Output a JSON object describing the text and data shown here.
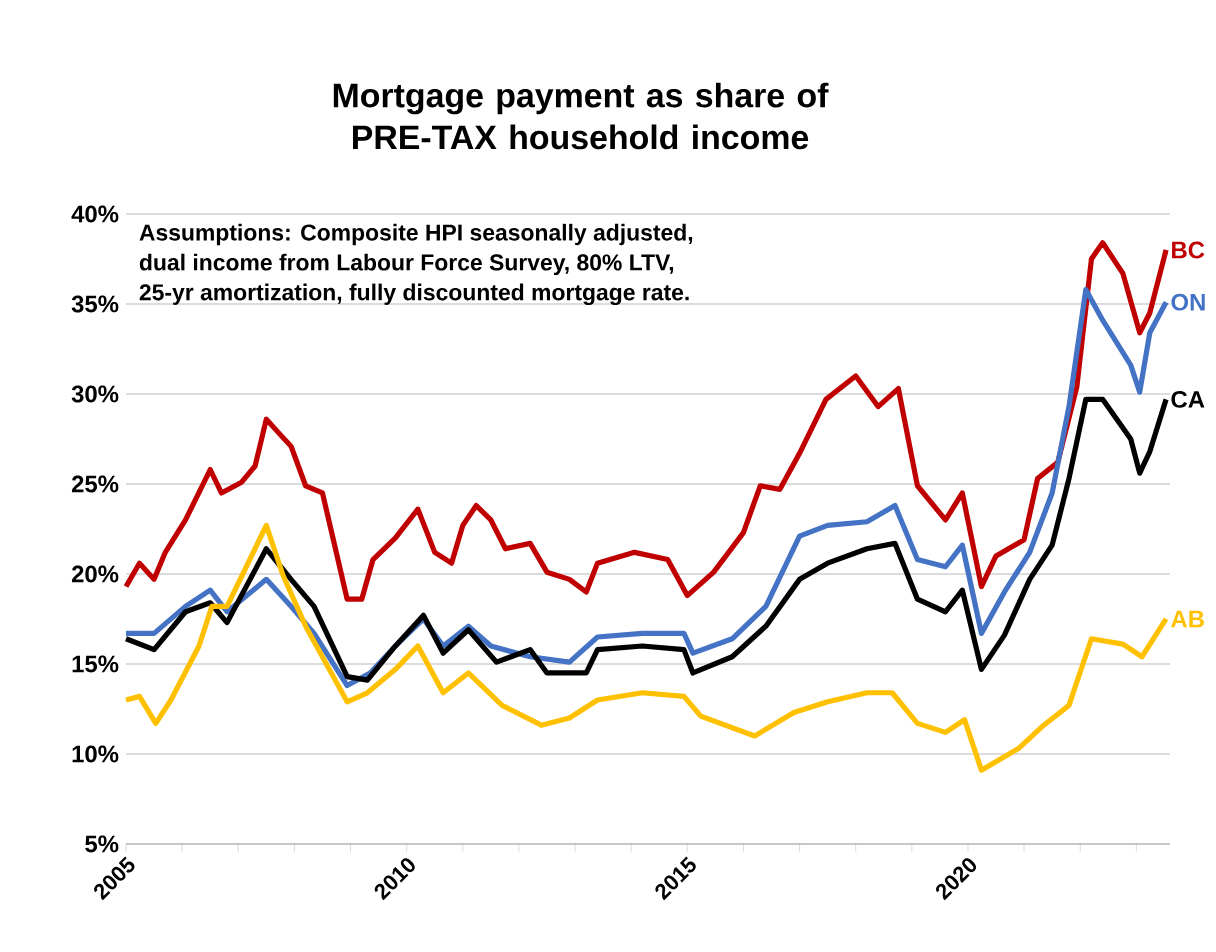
{
  "chart_data": {
    "type": "line",
    "title": "Mortgage payment as share of PRE-TAX household income",
    "annotations": [
      "Assumptions:  Composite HPI seasonally adjusted,",
      "dual income from Labour Force Survey, 80% LTV,",
      "25-yr amortization, fully discounted mortgage rate."
    ],
    "xlim": [
      2005,
      2023.6
    ],
    "xticks": [
      2005,
      {
        "value": 2006,
        "label": null
      },
      {
        "value": 2007,
        "label": null
      },
      {
        "value": 2008,
        "label": null
      },
      {
        "value": 2009,
        "label": null
      },
      2010,
      {
        "value": 2011,
        "label": null
      },
      {
        "value": 2012,
        "label": null
      },
      {
        "value": 2013,
        "label": null
      },
      {
        "value": 2014,
        "label": null
      },
      2015,
      {
        "value": 2016,
        "label": null
      },
      {
        "value": 2017,
        "label": null
      },
      {
        "value": 2018,
        "label": null
      },
      {
        "value": 2019,
        "label": null
      },
      2020,
      {
        "value": 2021,
        "label": null
      },
      {
        "value": 2022,
        "label": null
      },
      {
        "value": 2023,
        "label": null
      }
    ],
    "ylim": [
      5,
      40
    ],
    "yticks": [
      {
        "value": 5,
        "label": "5%"
      },
      {
        "value": 10,
        "label": "10%"
      },
      {
        "value": 15,
        "label": "15%"
      },
      {
        "value": 20,
        "label": "20%"
      },
      {
        "value": 25,
        "label": "25%"
      },
      {
        "value": 30,
        "label": "30%"
      },
      {
        "value": 35,
        "label": "35%"
      },
      {
        "value": 40,
        "label": "40%"
      }
    ],
    "grid": "y",
    "marker": "none",
    "line_style": "solid",
    "series": [
      {
        "name": "BC",
        "color": "#c00000",
        "x": [
          2005,
          2005.24,
          2005.5,
          2005.7,
          2006.06,
          2006.5,
          2006.7,
          2007.06,
          2007.3,
          2007.5,
          2007.76,
          2007.94,
          2008.2,
          2008.5,
          2008.94,
          2009.2,
          2009.4,
          2009.8,
          2010.2,
          2010.5,
          2010.8,
          2011.0,
          2011.24,
          2011.5,
          2011.76,
          2012.2,
          2012.5,
          2012.9,
          2013.2,
          2013.4,
          2014.06,
          2014.65,
          2015.0,
          2015.47,
          2016.0,
          2016.3,
          2016.65,
          2017.0,
          2017.47,
          2018.0,
          2018.4,
          2018.76,
          2019.1,
          2019.6,
          2019.9,
          2020.24,
          2020.5,
          2021.0,
          2021.24,
          2021.6,
          2021.94,
          2022.2,
          2022.4,
          2022.76,
          2023.06,
          2023.24,
          2023.53
        ],
        "values": [
          19.3,
          20.6,
          19.7,
          21.2,
          23.0,
          25.8,
          24.5,
          25.1,
          26.0,
          28.6,
          27.7,
          27.1,
          24.9,
          24.5,
          18.6,
          18.6,
          20.8,
          22.0,
          23.6,
          21.2,
          20.6,
          22.7,
          23.8,
          23.0,
          21.4,
          21.7,
          20.1,
          19.7,
          19.0,
          20.6,
          21.2,
          20.8,
          18.8,
          20.1,
          22.3,
          24.9,
          24.7,
          26.7,
          29.7,
          31.0,
          29.3,
          30.3,
          24.9,
          23.0,
          24.5,
          19.3,
          21.0,
          21.9,
          25.3,
          26.2,
          30.4,
          37.5,
          38.4,
          36.7,
          33.4,
          34.5,
          38.0
        ]
      },
      {
        "name": "ON",
        "color": "#4472c4",
        "x": [
          2005,
          2005.5,
          2006.06,
          2006.5,
          2006.8,
          2007.5,
          2007.94,
          2008.35,
          2008.94,
          2009.35,
          2009.8,
          2010.3,
          2010.65,
          2011.1,
          2011.5,
          2012.2,
          2012.9,
          2013.4,
          2014.2,
          2014.94,
          2015.1,
          2015.8,
          2016.4,
          2017.0,
          2017.5,
          2018.2,
          2018.7,
          2019.1,
          2019.6,
          2019.9,
          2020.24,
          2020.65,
          2021.1,
          2021.5,
          2021.8,
          2022.1,
          2022.4,
          2022.9,
          2023.06,
          2023.24,
          2023.53
        ],
        "values": [
          16.7,
          16.7,
          18.2,
          19.1,
          17.9,
          19.7,
          18.2,
          16.7,
          13.8,
          14.5,
          16.0,
          17.5,
          16.0,
          17.1,
          16.0,
          15.4,
          15.1,
          16.5,
          16.7,
          16.7,
          15.6,
          16.4,
          18.2,
          22.1,
          22.7,
          22.9,
          23.8,
          20.8,
          20.4,
          21.6,
          16.7,
          19.0,
          21.2,
          24.5,
          29.3,
          35.8,
          34.1,
          31.6,
          30.1,
          33.4,
          35.1
        ]
      },
      {
        "name": "CA",
        "color": "#000000",
        "x": [
          2005,
          2005.5,
          2006.06,
          2006.5,
          2006.8,
          2007.5,
          2007.94,
          2008.35,
          2008.94,
          2009.3,
          2009.8,
          2010.3,
          2010.65,
          2011.1,
          2011.6,
          2012.2,
          2012.5,
          2013.2,
          2013.4,
          2014.2,
          2014.94,
          2015.1,
          2015.8,
          2016.4,
          2017.0,
          2017.5,
          2018.2,
          2018.7,
          2019.1,
          2019.6,
          2019.9,
          2020.24,
          2020.65,
          2021.1,
          2021.5,
          2021.8,
          2022.1,
          2022.4,
          2022.9,
          2023.06,
          2023.24,
          2023.53
        ],
        "values": [
          16.4,
          15.8,
          17.9,
          18.4,
          17.3,
          21.4,
          19.7,
          18.2,
          14.3,
          14.1,
          16.0,
          17.7,
          15.6,
          16.9,
          15.1,
          15.8,
          14.5,
          14.5,
          15.8,
          16.0,
          15.8,
          14.5,
          15.4,
          17.1,
          19.7,
          20.6,
          21.4,
          21.7,
          18.6,
          17.9,
          19.1,
          14.7,
          16.6,
          19.7,
          21.6,
          25.3,
          29.7,
          29.7,
          27.5,
          25.6,
          26.8,
          29.7
        ]
      },
      {
        "name": "AB",
        "color": "#ffc000",
        "x": [
          2005,
          2005.24,
          2005.53,
          2005.8,
          2006.3,
          2006.53,
          2006.8,
          2007.5,
          2007.8,
          2008.2,
          2008.94,
          2009.3,
          2009.8,
          2010.2,
          2010.65,
          2011.1,
          2011.7,
          2012.4,
          2012.9,
          2013.4,
          2014.2,
          2014.94,
          2015.24,
          2016.2,
          2016.9,
          2017.5,
          2018.2,
          2018.65,
          2019.1,
          2019.6,
          2019.94,
          2020.24,
          2020.9,
          2021.35,
          2021.8,
          2022.2,
          2022.76,
          2023.1,
          2023.53
        ],
        "values": [
          13.0,
          13.2,
          11.7,
          13.0,
          16.0,
          18.2,
          18.2,
          22.7,
          19.9,
          17.1,
          12.9,
          13.4,
          14.7,
          16.0,
          13.4,
          14.5,
          12.7,
          11.6,
          12.0,
          13.0,
          13.4,
          13.2,
          12.1,
          11.0,
          12.3,
          12.9,
          13.4,
          13.4,
          11.7,
          11.2,
          11.9,
          9.1,
          10.3,
          11.6,
          12.7,
          16.4,
          16.1,
          15.4,
          17.5
        ]
      }
    ]
  }
}
